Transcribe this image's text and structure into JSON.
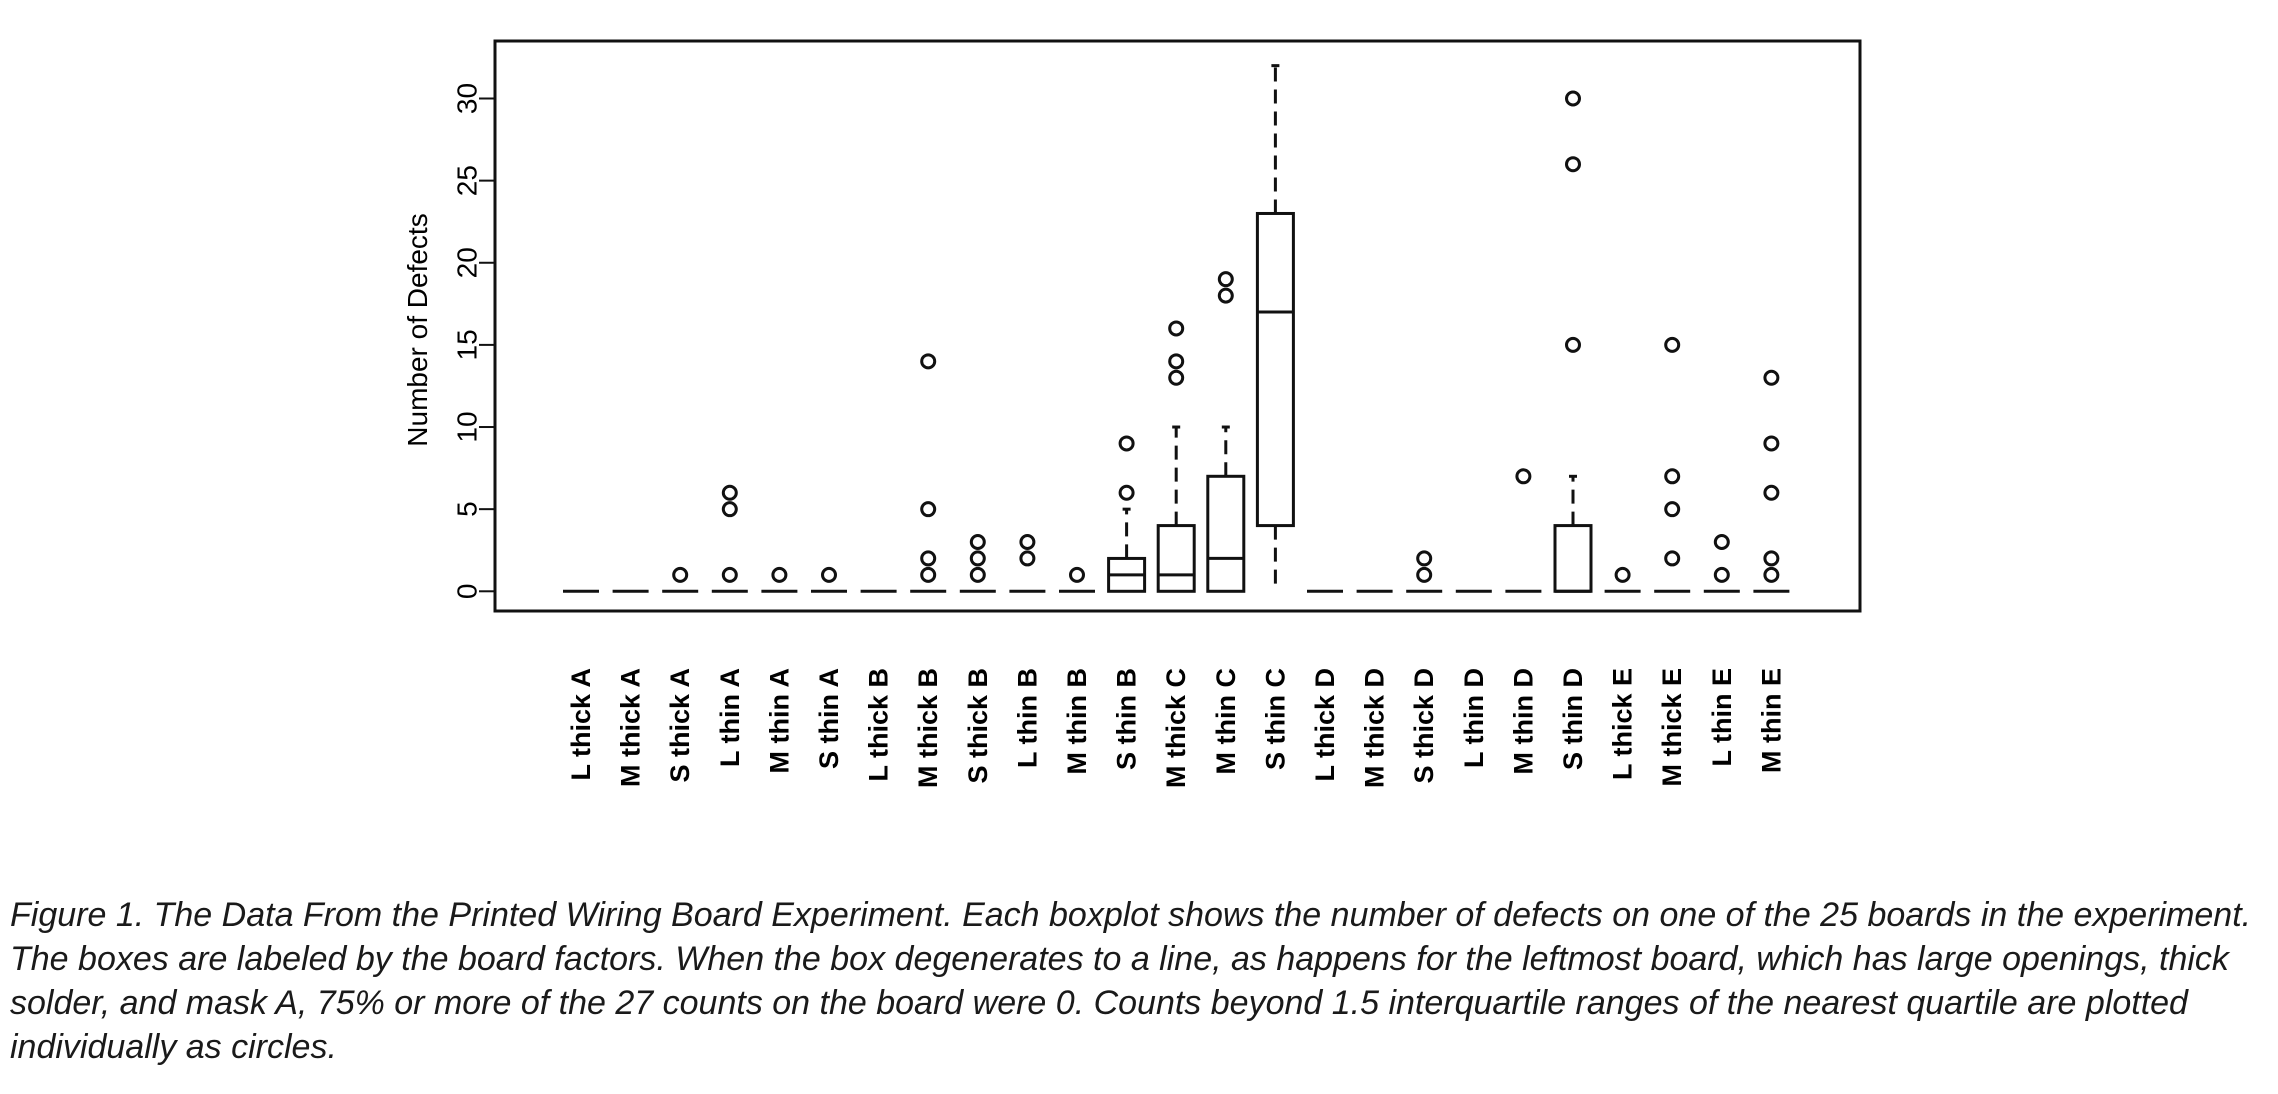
{
  "chart_data": {
    "type": "boxplot",
    "ylabel": "Number of Defects",
    "ylim": [
      -1.2,
      33.5
    ],
    "yticks": [
      0,
      5,
      10,
      15,
      20,
      25,
      30
    ],
    "categories": [
      "L thick A",
      "M thick A",
      "S thick A",
      "L thin A",
      "M thin A",
      "S thin A",
      "L thick B",
      "M thick B",
      "S thick B",
      "L thin B",
      "M thin B",
      "S thin B",
      "M thick C",
      "M thin C",
      "S thin C",
      "L thick D",
      "M thick D",
      "S thick D",
      "L thin D",
      "M thin D",
      "S thin D",
      "L thick E",
      "M thick E",
      "L thin E",
      "M thin E"
    ],
    "boxes": [
      {
        "q1": 0,
        "median": 0,
        "q3": 0,
        "whisker_low": 0,
        "whisker_high": 0,
        "outliers": []
      },
      {
        "q1": 0,
        "median": 0,
        "q3": 0,
        "whisker_low": 0,
        "whisker_high": 0,
        "outliers": []
      },
      {
        "q1": 0,
        "median": 0,
        "q3": 0,
        "whisker_low": 0,
        "whisker_high": 0,
        "outliers": [
          1
        ]
      },
      {
        "q1": 0,
        "median": 0,
        "q3": 0,
        "whisker_low": 0,
        "whisker_high": 0,
        "outliers": [
          1,
          5,
          6
        ]
      },
      {
        "q1": 0,
        "median": 0,
        "q3": 0,
        "whisker_low": 0,
        "whisker_high": 0,
        "outliers": [
          1
        ]
      },
      {
        "q1": 0,
        "median": 0,
        "q3": 0,
        "whisker_low": 0,
        "whisker_high": 0,
        "outliers": [
          1
        ]
      },
      {
        "q1": 0,
        "median": 0,
        "q3": 0,
        "whisker_low": 0,
        "whisker_high": 0,
        "outliers": []
      },
      {
        "q1": 0,
        "median": 0,
        "q3": 0,
        "whisker_low": 0,
        "whisker_high": 0,
        "outliers": [
          1,
          2,
          5,
          14
        ]
      },
      {
        "q1": 0,
        "median": 0,
        "q3": 0,
        "whisker_low": 0,
        "whisker_high": 0,
        "outliers": [
          1,
          2,
          3
        ]
      },
      {
        "q1": 0,
        "median": 0,
        "q3": 0,
        "whisker_low": 0,
        "whisker_high": 0,
        "outliers": [
          2,
          3
        ]
      },
      {
        "q1": 0,
        "median": 0,
        "q3": 0,
        "whisker_low": 0,
        "whisker_high": 0,
        "outliers": [
          1
        ]
      },
      {
        "q1": 0,
        "median": 1,
        "q3": 2,
        "whisker_low": 0,
        "whisker_high": 5,
        "outliers": [
          6,
          9
        ]
      },
      {
        "q1": 0,
        "median": 1,
        "q3": 4,
        "whisker_low": 0,
        "whisker_high": 10,
        "outliers": [
          13,
          14,
          16
        ]
      },
      {
        "q1": 0,
        "median": 2,
        "q3": 7,
        "whisker_low": 0,
        "whisker_high": 10,
        "outliers": [
          18,
          19
        ]
      },
      {
        "q1": 4,
        "median": 17,
        "q3": 23,
        "whisker_low": 0,
        "whisker_high": 32,
        "outliers": []
      },
      {
        "q1": 0,
        "median": 0,
        "q3": 0,
        "whisker_low": 0,
        "whisker_high": 0,
        "outliers": []
      },
      {
        "q1": 0,
        "median": 0,
        "q3": 0,
        "whisker_low": 0,
        "whisker_high": 0,
        "outliers": []
      },
      {
        "q1": 0,
        "median": 0,
        "q3": 0,
        "whisker_low": 0,
        "whisker_high": 0,
        "outliers": [
          1,
          2
        ]
      },
      {
        "q1": 0,
        "median": 0,
        "q3": 0,
        "whisker_low": 0,
        "whisker_high": 0,
        "outliers": []
      },
      {
        "q1": 0,
        "median": 0,
        "q3": 0,
        "whisker_low": 0,
        "whisker_high": 0,
        "outliers": [
          7
        ]
      },
      {
        "q1": 0,
        "median": 0,
        "q3": 4,
        "whisker_low": 0,
        "whisker_high": 7,
        "outliers": [
          15,
          26,
          30
        ]
      },
      {
        "q1": 0,
        "median": 0,
        "q3": 0,
        "whisker_low": 0,
        "whisker_high": 0,
        "outliers": [
          1
        ]
      },
      {
        "q1": 0,
        "median": 0,
        "q3": 0,
        "whisker_low": 0,
        "whisker_high": 0,
        "outliers": [
          2,
          5,
          7,
          15
        ]
      },
      {
        "q1": 0,
        "median": 0,
        "q3": 0,
        "whisker_low": 0,
        "whisker_high": 0,
        "outliers": [
          1,
          3
        ]
      },
      {
        "q1": 0,
        "median": 0,
        "q3": 0,
        "whisker_low": 0,
        "whisker_high": 0,
        "outliers": [
          1,
          2,
          6,
          9,
          13
        ]
      }
    ],
    "grid": false,
    "legend": "none"
  },
  "caption": "Figure 1.  The Data From the Printed Wiring Board Experiment. Each boxplot shows the number of defects on one of the 25 boards in the experiment. The boxes are labeled by the board factors. When the box degenerates to a line, as happens for the leftmost board, which has large openings, thick solder, and mask A, 75% or more of the 27 counts on the board were 0. Counts beyond 1.5 interquartile ranges of the nearest quartile are plotted individually as circles."
}
